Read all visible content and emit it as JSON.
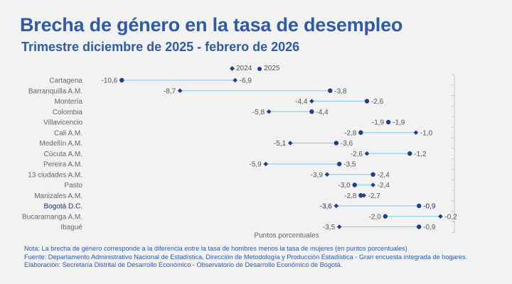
{
  "title": "Brecha de género en la tasa de desempleo",
  "subtitle": "Trimestre diciembre de 2025 - febrero de 2026",
  "legend": {
    "label_2024": "2024",
    "label_2025": "2025"
  },
  "footnotes": {
    "nota": "Nota: La brecha de género corresponde a la diferencia entre la tasa de hombres menos la tasa de mujeres (en puntos porcentuales)",
    "fuente": "Fuente: Departamento Administrativo Nacional de Estadística, Dirección de Metodología y Producción Estadística - Gran encuesta integrada de hogares.",
    "elaboracion": "Elaboración: Secretaría Distrital de Desarrollo Económico - Observatorio de Desarrollo Económico de Bogotá."
  },
  "colors": {
    "marker": "#1f3f86",
    "connector": "#8fd3ef",
    "highlight_text": "#1b2f6b"
  },
  "chart_data": {
    "type": "dumbbell",
    "title": "Brecha de género en la tasa de desempleo",
    "subtitle": "Trimestre diciembre de 2025 - febrero de 2026",
    "xlabel": "Puntos porcentuales",
    "xlim": [
      -11,
      0
    ],
    "legend_position": "top-center",
    "series": [
      {
        "name": "2024",
        "marker": "diamond"
      },
      {
        "name": "2025",
        "marker": "circle"
      }
    ],
    "categories": [
      {
        "name": "Cartagena",
        "v2024": -6.9,
        "v2025": -10.6,
        "l2024": "-6,9",
        "l2025": "-10,6",
        "bold": false
      },
      {
        "name": "Barranquilla A.M.",
        "v2024": -8.7,
        "v2025": -3.8,
        "l2024": "-8,7",
        "l2025": "-3,8",
        "bold": false
      },
      {
        "name": "Montería",
        "v2024": -4.4,
        "v2025": -2.6,
        "l2024": "-4,4",
        "l2025": "-2,6",
        "bold": false
      },
      {
        "name": "Colombia",
        "v2024": -5.8,
        "v2025": -4.4,
        "l2024": "-5,8",
        "l2025": "-4,4",
        "bold": false
      },
      {
        "name": "Villavicencio",
        "v2024": -1.9,
        "v2025": -1.9,
        "l2024": "-1,9",
        "l2025": "-1,9",
        "bold": false
      },
      {
        "name": "Cali A.M.",
        "v2024": -1.0,
        "v2025": -2.8,
        "l2024": "-1,0",
        "l2025": "-2,8",
        "bold": false
      },
      {
        "name": "Medellín A.M.",
        "v2024": -5.1,
        "v2025": -3.6,
        "l2024": "-5,1",
        "l2025": "-3,6",
        "bold": false
      },
      {
        "name": "Cúcuta A.M.",
        "v2024": -2.6,
        "v2025": -1.2,
        "l2024": "-2,6",
        "l2025": "-1,2",
        "bold": false
      },
      {
        "name": "Pereira A.M.",
        "v2024": -5.9,
        "v2025": -3.5,
        "l2024": "-5,9",
        "l2025": "-3,5",
        "bold": false
      },
      {
        "name": "13 ciudades A.M.",
        "v2024": -3.9,
        "v2025": -2.4,
        "l2024": "-3,9",
        "l2025": "-2,4",
        "bold": false
      },
      {
        "name": "Pasto",
        "v2024": -2.4,
        "v2025": -3.0,
        "l2024": "-2,4",
        "l2025": "-3,0",
        "bold": false
      },
      {
        "name": "Manizales A.M.",
        "v2024": -2.7,
        "v2025": -2.8,
        "l2024": "-2,7",
        "l2025": "-2,8",
        "bold": false
      },
      {
        "name": "Bogotá D.C.",
        "v2024": -3.6,
        "v2025": -0.9,
        "l2024": "-3,6",
        "l2025": "-0,9",
        "bold": true
      },
      {
        "name": "Bucaramanga A.M.",
        "v2024": -0.2,
        "v2025": -2.0,
        "l2024": "-0,2",
        "l2025": "-2,0",
        "bold": false
      },
      {
        "name": "Ibagué",
        "v2024": -3.5,
        "v2025": -0.9,
        "l2024": "-3,5",
        "l2025": "-0,9",
        "bold": false
      }
    ]
  }
}
